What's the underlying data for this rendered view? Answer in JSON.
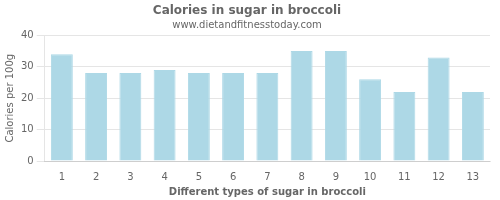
{
  "chart_data": {
    "type": "bar",
    "title": "Calories in sugar in broccoli",
    "subtitle": "www.dietandfitnesstoday.com",
    "xlabel": "Different types of sugar in broccoli",
    "ylabel": "Calories per 100g",
    "categories": [
      1,
      2,
      3,
      4,
      5,
      6,
      7,
      8,
      9,
      10,
      11,
      12,
      13
    ],
    "values": [
      34,
      28,
      28,
      29,
      28,
      28,
      28,
      35,
      35,
      26,
      22,
      33,
      22
    ],
    "color": "#add8e6",
    "ylim": [
      0,
      40
    ],
    "yticks": [
      0,
      10,
      20,
      30,
      40
    ],
    "grid": true
  }
}
